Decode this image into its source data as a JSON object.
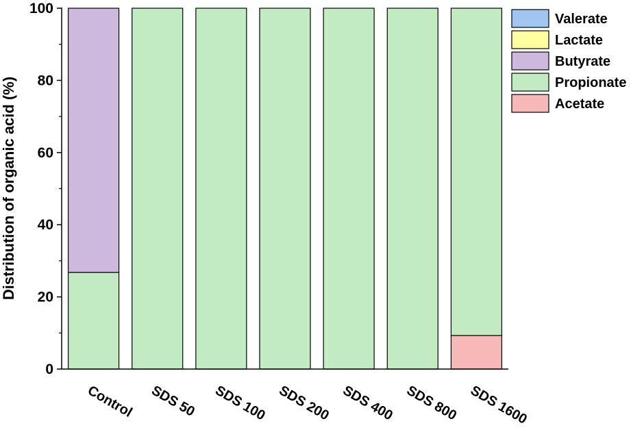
{
  "chart_data": {
    "type": "bar",
    "stacked": true,
    "categories": [
      "Control",
      "SDS 50",
      "SDS 100",
      "SDS 200",
      "SDS 400",
      "SDS 800",
      "SDS 1600"
    ],
    "series": [
      {
        "name": "Acetate",
        "color": "#f7b8b8",
        "values": [
          0,
          0,
          0,
          0,
          0,
          0,
          9.3
        ]
      },
      {
        "name": "Propionate",
        "color": "#c2ebc2",
        "values": [
          26.8,
          100,
          100,
          100,
          100,
          100,
          90.7
        ]
      },
      {
        "name": "Butyrate",
        "color": "#cdb9dd",
        "values": [
          73.2,
          0,
          0,
          0,
          0,
          0,
          0
        ]
      },
      {
        "name": "Lactate",
        "color": "#ffff9f",
        "values": [
          0,
          0,
          0,
          0,
          0,
          0,
          0
        ]
      },
      {
        "name": "Valerate",
        "color": "#9fc5f0",
        "values": [
          0,
          0,
          0,
          0,
          0,
          0,
          0
        ]
      }
    ],
    "legend_order": [
      "Valerate",
      "Lactate",
      "Butyrate",
      "Propionate",
      "Acetate"
    ],
    "legend_position": "top-right",
    "ylabel": "Distribution of organic acid (%)",
    "xlabel": "",
    "ylim": [
      0,
      100
    ],
    "yticks": [
      0,
      20,
      40,
      60,
      80,
      100
    ],
    "grid": false
  }
}
